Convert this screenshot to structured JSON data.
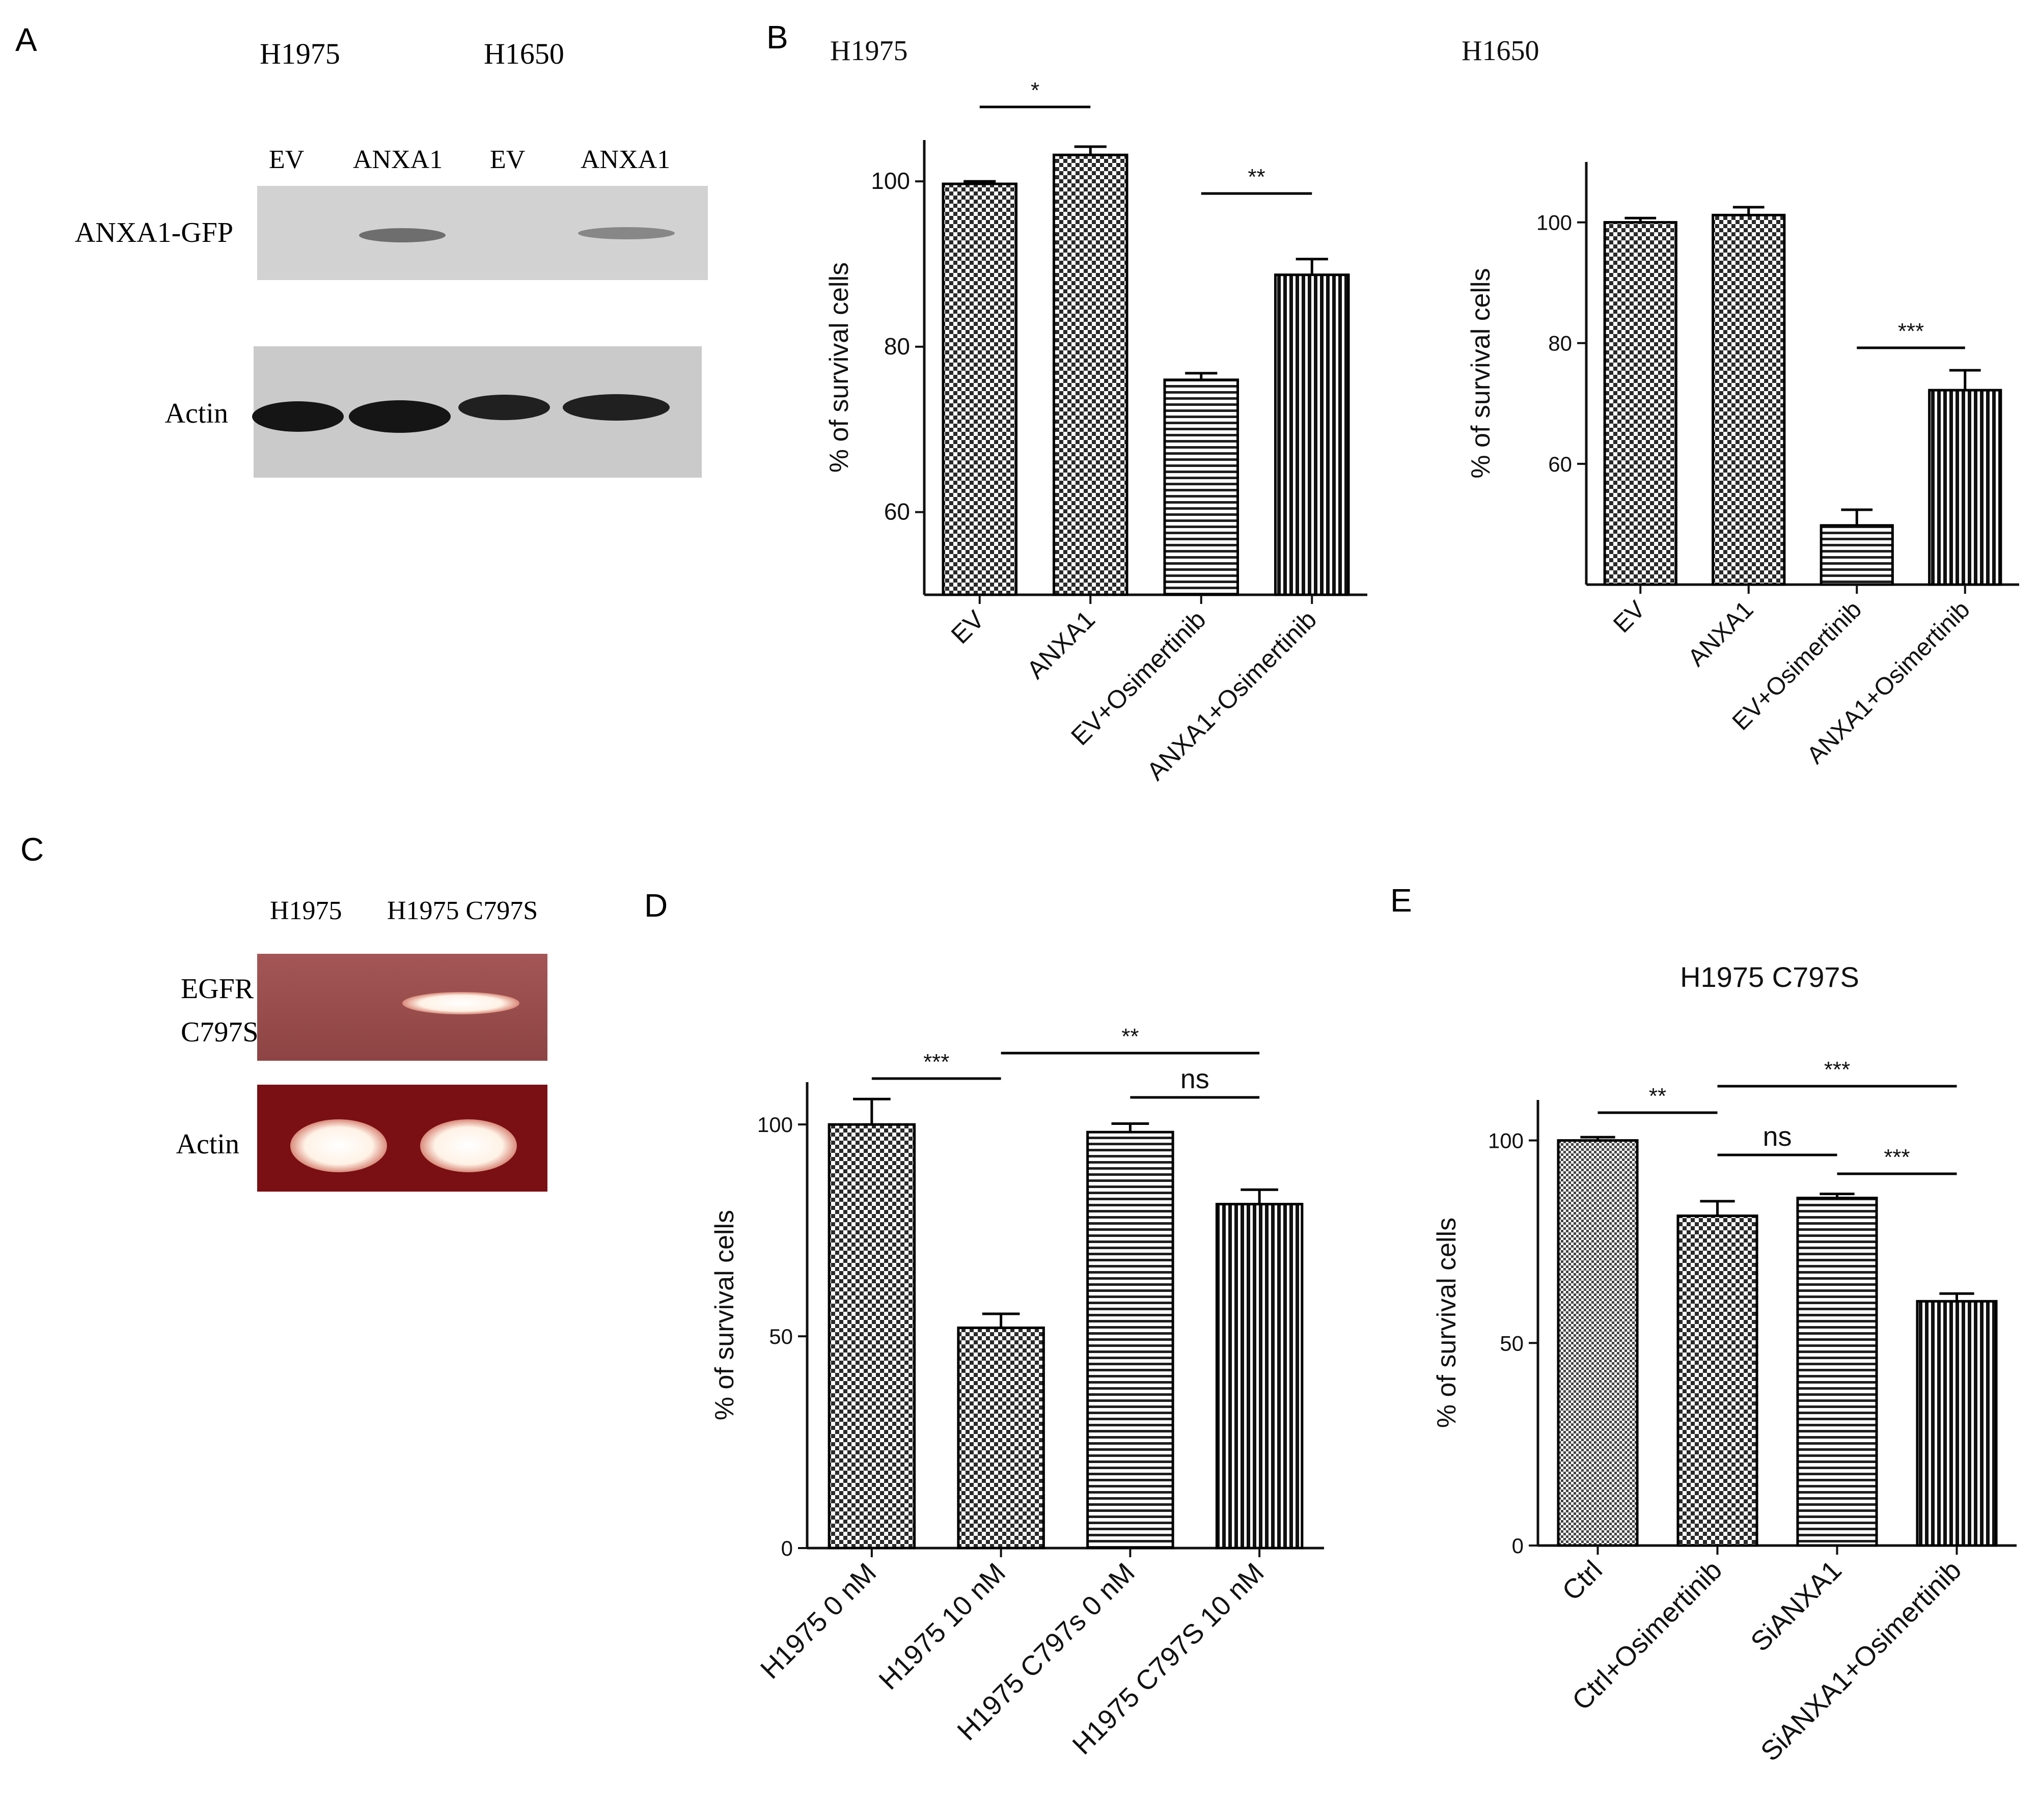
{
  "panels": {
    "A": {
      "letter": "A",
      "cell_lines": [
        "H1975",
        "H1650"
      ],
      "lanes": [
        "EV",
        "ANXA1",
        "EV",
        "ANXA1"
      ],
      "rows": [
        "ANXA1-GFP",
        "Actin"
      ]
    },
    "C": {
      "letter": "C",
      "lanes": [
        "H1975",
        "H1975 C797S"
      ],
      "rows": [
        "EGFR",
        "C797S",
        "Actin"
      ]
    },
    "B": {
      "letter": "B"
    },
    "D": {
      "letter": "D"
    },
    "E": {
      "letter": "E"
    }
  },
  "chart_data": [
    {
      "id": "B-H1975",
      "type": "bar",
      "title": "H1975",
      "ylabel": "% of survival cells",
      "categories": [
        "EV",
        "ANXA1",
        "EV+Osimertinib",
        "ANXA1+Osimertinib"
      ],
      "values": [
        99.7,
        103.2,
        76.0,
        88.7
      ],
      "errors": [
        0.3,
        1.0,
        0.8,
        1.9
      ],
      "ylim": [
        50,
        105
      ],
      "yticks": [
        60,
        80,
        100
      ],
      "significance": [
        {
          "from": 0,
          "to": 1,
          "label": "*"
        },
        {
          "from": 2,
          "to": 3,
          "label": "**"
        }
      ]
    },
    {
      "id": "B-H1650",
      "type": "bar",
      "title": "H1650",
      "ylabel": "% of survival cells",
      "categories": [
        "EV",
        "ANXA1",
        "EV+Osimertinib",
        "ANXA1+Osimertinib"
      ],
      "values": [
        100.0,
        101.2,
        49.8,
        72.2
      ],
      "errors": [
        0.7,
        1.3,
        2.6,
        3.3
      ],
      "ylim": [
        40,
        110
      ],
      "yticks": [
        60,
        80,
        100
      ],
      "significance": [
        {
          "from": 2,
          "to": 3,
          "label": "***"
        }
      ]
    },
    {
      "id": "D",
      "type": "bar",
      "title": "",
      "ylabel": "% of survival cells",
      "categories": [
        "H1975 0 nM",
        "H1975 10 nM",
        "H1975 C797s 0 nM",
        "H1975 C797S 10 nM"
      ],
      "values": [
        100.0,
        52.0,
        98.2,
        81.2
      ],
      "errors": [
        6.0,
        3.3,
        2.0,
        3.4
      ],
      "ylim": [
        0,
        110
      ],
      "yticks": [
        0,
        50,
        100
      ],
      "significance": [
        {
          "from": 0,
          "to": 1,
          "label": "***"
        },
        {
          "from": 1,
          "to": 3,
          "label": "**"
        },
        {
          "from": 2,
          "to": 3,
          "label": "ns"
        }
      ]
    },
    {
      "id": "E",
      "type": "bar",
      "title": "H1975 C797S",
      "ylabel": "% of survival cells",
      "categories": [
        "Ctrl",
        "Ctrl+Osimertinib",
        "SiANXA1",
        "SiANXA1+Osimertinib"
      ],
      "values": [
        100.0,
        81.4,
        85.8,
        60.3
      ],
      "errors": [
        0.8,
        3.6,
        1.0,
        1.9
      ],
      "ylim": [
        0,
        110
      ],
      "yticks": [
        0,
        50,
        100
      ],
      "significance": [
        {
          "from": 0,
          "to": 1,
          "label": "**"
        },
        {
          "from": 1,
          "to": 3,
          "label": "***"
        },
        {
          "from": 1,
          "to": 2,
          "label": "ns"
        },
        {
          "from": 2,
          "to": 3,
          "label": "***"
        }
      ]
    }
  ],
  "colors": {
    "axis": "#111111",
    "bar_fill_dark": "#1a1a1a",
    "blot_background": "#cfcfcf",
    "gel_background": "#8a2020",
    "gel_band": "#fff6ee"
  }
}
